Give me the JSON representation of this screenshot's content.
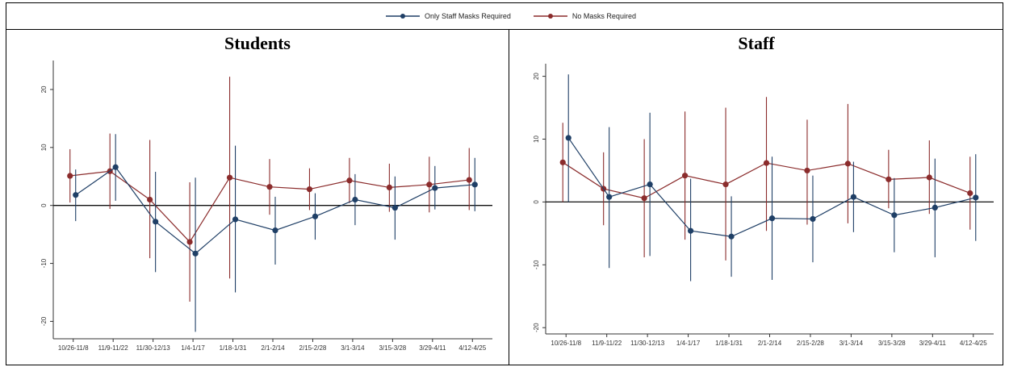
{
  "legend": {
    "series": [
      {
        "name": "Only Staff Masks Required",
        "color": "#1f3f66"
      },
      {
        "name": "No Masks Required",
        "color": "#8b2c2c"
      }
    ]
  },
  "panels": {
    "students": {
      "title": "Students"
    },
    "staff": {
      "title": "Staff"
    }
  },
  "colors": {
    "blue": "#1f3f66",
    "red": "#8b2c2c"
  },
  "chart_data": [
    {
      "type": "line",
      "title": "Students",
      "categories": [
        "10/26-11/8",
        "11/9-11/22",
        "11/30-12/13",
        "1/4-1/17",
        "1/18-1/31",
        "2/1-2/14",
        "2/15-2/28",
        "3/1-3/14",
        "3/15-3/28",
        "3/29-4/11",
        "4/12-4/25"
      ],
      "ylim": [
        -23,
        25
      ],
      "yticks": [
        -20,
        -10,
        0,
        10,
        20
      ],
      "ytick_labels": [
        "-20",
        "-10",
        "0",
        "10",
        "20"
      ],
      "error_bars": true,
      "series": [
        {
          "name": "Only Staff Masks Required",
          "color": "#1f3f66",
          "values": [
            1.8,
            6.6,
            -2.8,
            -8.3,
            -2.4,
            -4.3,
            -1.9,
            1.0,
            -0.4,
            3.0,
            3.6
          ],
          "lower": [
            -2.7,
            0.8,
            -11.5,
            -21.8,
            -15.0,
            -10.2,
            -5.9,
            -3.4,
            -5.9,
            -0.7,
            -1.0
          ],
          "upper": [
            6.2,
            12.3,
            5.8,
            4.8,
            10.3,
            1.5,
            2.1,
            5.4,
            5.0,
            6.8,
            8.2
          ]
        },
        {
          "name": "No Masks Required",
          "color": "#8b2c2c",
          "values": [
            5.1,
            5.9,
            1.0,
            -6.3,
            4.8,
            3.2,
            2.8,
            4.3,
            3.1,
            3.6,
            4.4
          ],
          "lower": [
            0.5,
            -0.6,
            -9.1,
            -16.6,
            -12.6,
            -1.6,
            -0.8,
            0.4,
            -1.1,
            -1.2,
            -0.8
          ],
          "upper": [
            9.7,
            12.4,
            11.3,
            4.0,
            22.2,
            8.0,
            6.4,
            8.2,
            7.2,
            8.4,
            9.9
          ]
        }
      ]
    },
    {
      "type": "line",
      "title": "Staff",
      "categories": [
        "10/26-11/8",
        "11/9-11/22",
        "11/30-12/13",
        "1/4-1/17",
        "1/18-1/31",
        "2/1-2/14",
        "2/15-2/28",
        "3/1-3/14",
        "3/15-3/28",
        "3/29-4/11",
        "4/12-4/25"
      ],
      "ylim": [
        -21,
        22
      ],
      "yticks": [
        -20,
        -10,
        0,
        10,
        20
      ],
      "ytick_labels": [
        "-20",
        "-10",
        "0",
        "10",
        "20"
      ],
      "error_bars": true,
      "series": [
        {
          "name": "Only Staff Masks Required",
          "color": "#1f3f66",
          "values": [
            10.2,
            0.8,
            2.8,
            -4.6,
            -5.5,
            -2.6,
            -2.7,
            0.8,
            -2.1,
            -0.9,
            0.7
          ],
          "lower": [
            0.0,
            -10.5,
            -8.6,
            -12.6,
            -11.9,
            -12.4,
            -9.6,
            -4.8,
            -8.0,
            -8.8,
            -6.2
          ],
          "upper": [
            20.3,
            11.9,
            14.2,
            3.7,
            0.9,
            7.2,
            4.2,
            6.4,
            3.8,
            6.9,
            7.6
          ]
        },
        {
          "name": "No Masks Required",
          "color": "#8b2c2c",
          "values": [
            6.3,
            2.1,
            0.6,
            4.2,
            2.8,
            6.2,
            5.0,
            6.1,
            3.6,
            3.9,
            1.4
          ],
          "lower": [
            0.0,
            -3.7,
            -8.8,
            -6.0,
            -9.3,
            -4.6,
            -3.6,
            -3.4,
            -1.0,
            -1.9,
            -4.4
          ],
          "upper": [
            12.6,
            7.9,
            10.0,
            14.4,
            15.0,
            16.7,
            13.1,
            15.6,
            8.3,
            9.8,
            7.2
          ]
        }
      ]
    }
  ]
}
